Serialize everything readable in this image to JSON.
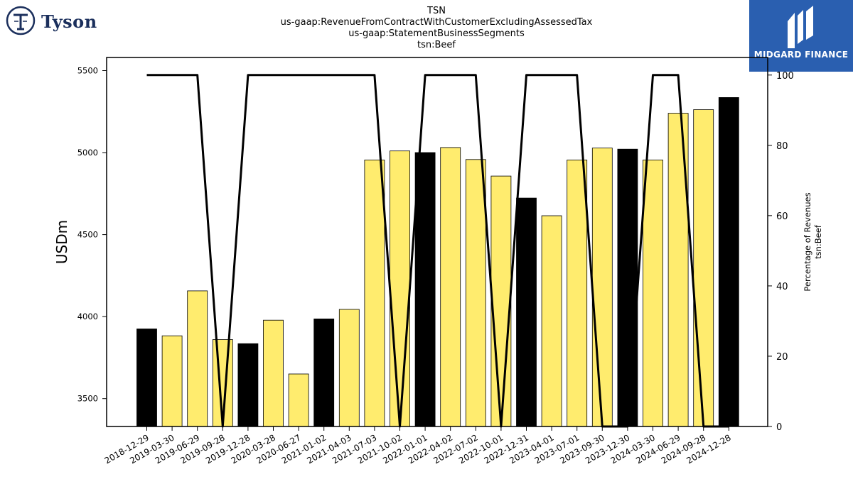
{
  "header": {
    "title_lines": [
      "TSN",
      "us-gaap:RevenueFromContractWithCustomerExcludingAssessedTax",
      "us-gaap:StatementBusinessSegments",
      "tsn:Beef"
    ]
  },
  "logos": {
    "left_brand": "Tyson",
    "right_brand": "MIDGARD FINANCE"
  },
  "chart_data": {
    "type": "bar",
    "title": "TSN",
    "subtitle": [
      "us-gaap:RevenueFromContractWithCustomerExcludingAssessedTax",
      "us-gaap:StatementBusinessSegments",
      "tsn:Beef"
    ],
    "ylabel": "USDm",
    "y2label": [
      "Percentage of Revenues",
      "tsn:Beef"
    ],
    "ylim": [
      3330,
      5580
    ],
    "y2lim": [
      0,
      105
    ],
    "yticks": [
      3500,
      4000,
      4500,
      5000,
      5500
    ],
    "y2ticks": [
      0,
      20,
      40,
      60,
      80,
      100
    ],
    "categories": [
      "2018-12-29",
      "2019-03-30",
      "2019-06-29",
      "2019-09-28",
      "2019-12-28",
      "2020-03-28",
      "2020-06-27",
      "2021-01-02",
      "2021-04-03",
      "2021-07-03",
      "2021-10-02",
      "2022-01-01",
      "2022-04-02",
      "2022-07-02",
      "2022-10-01",
      "2022-12-31",
      "2023-04-01",
      "2023-07-01",
      "2023-09-30",
      "2023-12-30",
      "2024-03-30",
      "2024-06-29",
      "2024-09-28",
      "2024-12-28"
    ],
    "series": [
      {
        "type": "bar",
        "values": [
          3925,
          3883,
          4157,
          3860,
          3835,
          3978,
          3650,
          3986,
          4044,
          4955,
          5010,
          5000,
          5031,
          4958,
          4857,
          4723,
          4615,
          4955,
          5028,
          5021,
          4955,
          5240,
          5262,
          5336
        ],
        "highlight": [
          true,
          false,
          false,
          false,
          true,
          false,
          false,
          true,
          false,
          false,
          false,
          true,
          false,
          false,
          false,
          true,
          false,
          false,
          false,
          true,
          false,
          false,
          false,
          true
        ]
      },
      {
        "type": "line",
        "axis": "right",
        "values": [
          100,
          100,
          100,
          0,
          100,
          100,
          100,
          100,
          100,
          100,
          0,
          100,
          100,
          100,
          0,
          100,
          100,
          100,
          0,
          0,
          100,
          100,
          0,
          0
        ]
      }
    ],
    "colors": {
      "bar": "#ffec6e",
      "bar_highlight": "#000000",
      "line": "#000000",
      "edge": "#000000"
    },
    "grid": false,
    "legend": "none"
  }
}
